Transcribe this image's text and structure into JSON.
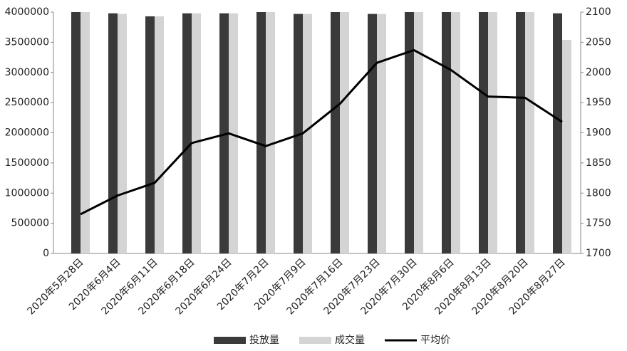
{
  "chart_data": {
    "type": "bar",
    "categories": [
      "2020年5月28日",
      "2020年6月4日",
      "2020年6月11日",
      "2020年6月18日",
      "2020年6月24日",
      "2020年7月2日",
      "2020年7月9日",
      "2020年7月16日",
      "2020年7月23日",
      "2020年7月30日",
      "2020年8月6日",
      "2020年8月13日",
      "2020年8月20日",
      "2020年8月27日"
    ],
    "series": [
      {
        "name": "投放量",
        "color": "#3a3a3a",
        "values": [
          4000000,
          3980000,
          3930000,
          3980000,
          3980000,
          4000000,
          3970000,
          4000000,
          3970000,
          4000000,
          4000000,
          4000000,
          4000000,
          3980000
        ]
      },
      {
        "name": "成交量",
        "color": "#d4d4d4",
        "values": [
          4000000,
          3970000,
          3930000,
          3980000,
          3980000,
          4000000,
          3970000,
          4000000,
          3970000,
          4000000,
          4000000,
          4000000,
          4000000,
          3540000
        ]
      },
      {
        "name": "平均价",
        "color": "#000000",
        "type": "line",
        "axis": "y2",
        "values": [
          1765,
          1796,
          1817,
          1883,
          1899,
          1878,
          1899,
          1948,
          2016,
          2037,
          2004,
          1960,
          1958,
          1918
        ]
      }
    ],
    "ylim": [
      0,
      4000000
    ],
    "yticks": [
      0,
      500000,
      1000000,
      1500000,
      2000000,
      2500000,
      3000000,
      3500000,
      4000000
    ],
    "y2lim": [
      1700,
      2100
    ],
    "y2ticks": [
      1700,
      1750,
      1800,
      1850,
      1900,
      1950,
      2000,
      2050,
      2100
    ],
    "legend": "bottom"
  }
}
